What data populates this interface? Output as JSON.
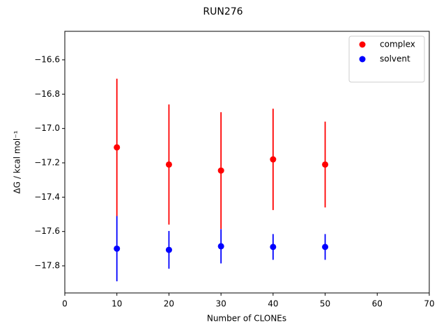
{
  "chart_data": {
    "type": "errorbar-scatter",
    "title": "RUN276",
    "xlabel": "Number of CLONEs",
    "ylabel": "ΔG / kcal mol⁻¹",
    "x": [
      10,
      20,
      30,
      40,
      50
    ],
    "series": [
      {
        "name": "complex",
        "color": "#ff0000",
        "values": [
          -17.11,
          -17.21,
          -17.245,
          -17.18,
          -17.21
        ],
        "errors": [
          0.4,
          0.35,
          0.34,
          0.295,
          0.25
        ]
      },
      {
        "name": "solvent",
        "color": "#0000ff",
        "values": [
          -17.7,
          -17.707,
          -17.686,
          -17.69,
          -17.69
        ],
        "errors": [
          0.19,
          0.11,
          0.1,
          0.075,
          0.075
        ]
      }
    ],
    "xlim": [
      0,
      70
    ],
    "xticks": [
      0,
      10,
      20,
      30,
      40,
      50,
      60,
      70
    ],
    "ylim": [
      -17.958,
      -16.434
    ],
    "yticks": [
      {
        "value": -17.8,
        "label": "−17.8"
      },
      {
        "value": -17.6,
        "label": "−17.6"
      },
      {
        "value": -17.4,
        "label": "−17.4"
      },
      {
        "value": -17.2,
        "label": "−17.2"
      },
      {
        "value": -17.0,
        "label": "−17.0"
      },
      {
        "value": -16.8,
        "label": "−16.8"
      },
      {
        "value": -16.6,
        "label": "−16.6"
      }
    ],
    "legend": "upper right",
    "grid": false
  }
}
